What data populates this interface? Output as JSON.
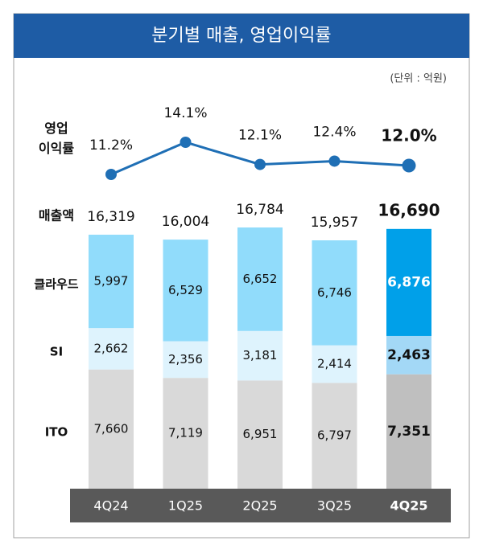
{
  "chart_data": {
    "type": "stacked-bar-with-line",
    "title": "분기별 매출, 영업이익률",
    "unit_note": "(단위 : 억원)",
    "categories": [
      "4Q24",
      "1Q25",
      "2Q25",
      "3Q25",
      "4Q25"
    ],
    "highlight_category": "4Q25",
    "margin": {
      "name": "영업 이익률",
      "color": "#1f6fb5",
      "values": [
        11.2,
        14.1,
        12.1,
        12.4,
        12.0
      ],
      "value_labels": [
        "11.2%",
        "14.1%",
        "12.1%",
        "12.4%",
        "12.0%"
      ]
    },
    "totals": {
      "name": "매출액",
      "values": [
        16319,
        16004,
        16784,
        15957,
        16690
      ],
      "value_labels": [
        "16,319",
        "16,004",
        "16,784",
        "15,957",
        "16,690"
      ]
    },
    "series": [
      {
        "name": "클라우드",
        "colors": [
          "#91dcfb",
          "#91dcfb",
          "#91dcfb",
          "#91dcfb",
          "#00a0e9"
        ],
        "values": [
          5997,
          6529,
          6652,
          6746,
          6876
        ],
        "value_labels": [
          "5,997",
          "6,529",
          "6,652",
          "6,746",
          "6,876"
        ]
      },
      {
        "name": "SI",
        "colors": [
          "#def3fd",
          "#def3fd",
          "#def3fd",
          "#def3fd",
          "#a3d8f6"
        ],
        "values": [
          2662,
          2356,
          3181,
          2414,
          2463
        ],
        "value_labels": [
          "2,662",
          "2,356",
          "3,181",
          "2,414",
          "2,463"
        ]
      },
      {
        "name": "ITO",
        "colors": [
          "#d9d9d9",
          "#d9d9d9",
          "#d9d9d9",
          "#d9d9d9",
          "#bfbfbf"
        ],
        "values": [
          7660,
          7119,
          6951,
          6797,
          7351
        ],
        "value_labels": [
          "7,660",
          "7,119",
          "6,951",
          "6,797",
          "7,351"
        ]
      }
    ]
  }
}
